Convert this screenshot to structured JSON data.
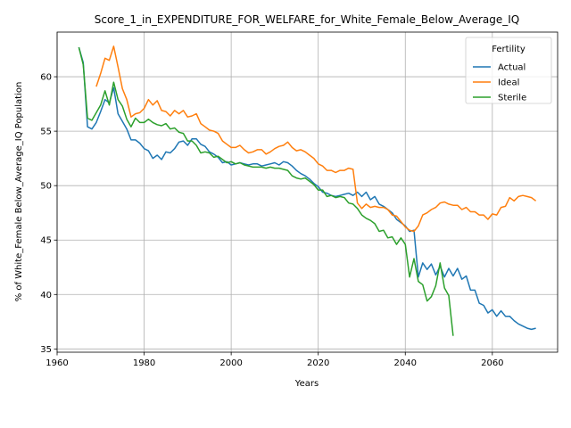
{
  "chart_data": {
    "type": "line",
    "title": "Score_1_in_EXPENDITURE_FOR_WELFARE_for_White_Female_Below_Average_IQ",
    "xlabel": "Years",
    "ylabel": "% of White_Female Below_Average_IQ Population",
    "xlim": [
      1960,
      2075
    ],
    "ylim": [
      34.7,
      64.1
    ],
    "xticks": [
      1960,
      1980,
      2000,
      2020,
      2040,
      2060
    ],
    "yticks": [
      35,
      40,
      45,
      50,
      55,
      60
    ],
    "grid": true,
    "legend": {
      "title": "Fertility",
      "placement": "top-right"
    },
    "series": [
      {
        "name": "Actual",
        "color": "#1f77b4",
        "points": [
          [
            1965,
            62.7
          ],
          [
            1966,
            61.3
          ],
          [
            1967,
            55.4
          ],
          [
            1968,
            55.2
          ],
          [
            1969,
            55.8
          ],
          [
            1970,
            56.8
          ],
          [
            1971,
            57.9
          ],
          [
            1972,
            57.6
          ],
          [
            1973,
            59.0
          ],
          [
            1974,
            56.6
          ],
          [
            1975,
            55.9
          ],
          [
            1976,
            55.2
          ],
          [
            1977,
            54.2
          ],
          [
            1978,
            54.2
          ],
          [
            1979,
            53.9
          ],
          [
            1980,
            53.4
          ],
          [
            1981,
            53.2
          ],
          [
            1982,
            52.5
          ],
          [
            1983,
            52.8
          ],
          [
            1984,
            52.4
          ],
          [
            1985,
            53.1
          ],
          [
            1986,
            53.0
          ],
          [
            1987,
            53.4
          ],
          [
            1988,
            54.0
          ],
          [
            1989,
            54.1
          ],
          [
            1990,
            53.7
          ],
          [
            1991,
            54.3
          ],
          [
            1992,
            54.3
          ],
          [
            1993,
            53.8
          ],
          [
            1994,
            53.6
          ],
          [
            1995,
            53.1
          ],
          [
            1996,
            52.9
          ],
          [
            1997,
            52.6
          ],
          [
            1998,
            52.1
          ],
          [
            1999,
            52.2
          ],
          [
            2000,
            51.9
          ],
          [
            2001,
            52.0
          ],
          [
            2002,
            52.1
          ],
          [
            2003,
            52.0
          ],
          [
            2004,
            51.9
          ],
          [
            2005,
            52.0
          ],
          [
            2006,
            52.0
          ],
          [
            2007,
            51.8
          ],
          [
            2008,
            51.9
          ],
          [
            2009,
            52.0
          ],
          [
            2010,
            52.1
          ],
          [
            2011,
            51.9
          ],
          [
            2012,
            52.2
          ],
          [
            2013,
            52.1
          ],
          [
            2014,
            51.8
          ],
          [
            2015,
            51.4
          ],
          [
            2016,
            51.1
          ],
          [
            2017,
            50.9
          ],
          [
            2018,
            50.6
          ],
          [
            2019,
            50.2
          ],
          [
            2020,
            49.9
          ],
          [
            2021,
            49.4
          ],
          [
            2022,
            49.3
          ],
          [
            2023,
            49.1
          ],
          [
            2024,
            49.0
          ],
          [
            2025,
            49.1
          ],
          [
            2026,
            49.2
          ],
          [
            2027,
            49.3
          ],
          [
            2028,
            49.1
          ],
          [
            2029,
            49.4
          ],
          [
            2030,
            49.0
          ],
          [
            2031,
            49.4
          ],
          [
            2032,
            48.7
          ],
          [
            2033,
            49.0
          ],
          [
            2034,
            48.3
          ],
          [
            2035,
            48.1
          ],
          [
            2036,
            47.8
          ],
          [
            2037,
            47.5
          ],
          [
            2038,
            46.9
          ],
          [
            2039,
            46.6
          ],
          [
            2040,
            46.3
          ],
          [
            2041,
            45.8
          ],
          [
            2042,
            45.9
          ],
          [
            2043,
            41.6
          ],
          [
            2044,
            42.9
          ],
          [
            2045,
            42.3
          ],
          [
            2046,
            42.8
          ],
          [
            2047,
            41.8
          ],
          [
            2048,
            42.6
          ],
          [
            2049,
            41.6
          ],
          [
            2050,
            42.4
          ],
          [
            2051,
            41.7
          ],
          [
            2052,
            42.4
          ],
          [
            2053,
            41.4
          ],
          [
            2054,
            41.7
          ],
          [
            2055,
            40.4
          ],
          [
            2056,
            40.4
          ],
          [
            2057,
            39.2
          ],
          [
            2058,
            39.0
          ],
          [
            2059,
            38.3
          ],
          [
            2060,
            38.6
          ],
          [
            2061,
            38.0
          ],
          [
            2062,
            38.5
          ],
          [
            2063,
            38.0
          ],
          [
            2064,
            38.0
          ],
          [
            2065,
            37.6
          ],
          [
            2066,
            37.3
          ],
          [
            2067,
            37.1
          ],
          [
            2068,
            36.9
          ],
          [
            2069,
            36.8
          ],
          [
            2070,
            36.9
          ]
        ]
      },
      {
        "name": "Ideal",
        "color": "#ff7f0e",
        "points": [
          [
            1969,
            59.1
          ],
          [
            1970,
            60.3
          ],
          [
            1971,
            61.7
          ],
          [
            1972,
            61.5
          ],
          [
            1973,
            62.8
          ],
          [
            1974,
            60.9
          ],
          [
            1975,
            58.9
          ],
          [
            1976,
            57.9
          ],
          [
            1977,
            56.3
          ],
          [
            1978,
            56.6
          ],
          [
            1979,
            56.7
          ],
          [
            1980,
            57.1
          ],
          [
            1981,
            57.9
          ],
          [
            1982,
            57.4
          ],
          [
            1983,
            57.8
          ],
          [
            1984,
            56.9
          ],
          [
            1985,
            56.8
          ],
          [
            1986,
            56.4
          ],
          [
            1987,
            56.9
          ],
          [
            1988,
            56.6
          ],
          [
            1989,
            56.9
          ],
          [
            1990,
            56.3
          ],
          [
            1991,
            56.4
          ],
          [
            1992,
            56.6
          ],
          [
            1993,
            55.7
          ],
          [
            1994,
            55.4
          ],
          [
            1995,
            55.1
          ],
          [
            1996,
            55.0
          ],
          [
            1997,
            54.8
          ],
          [
            1998,
            54.1
          ],
          [
            1999,
            53.8
          ],
          [
            2000,
            53.5
          ],
          [
            2001,
            53.5
          ],
          [
            2002,
            53.7
          ],
          [
            2003,
            53.3
          ],
          [
            2004,
            53.0
          ],
          [
            2005,
            53.1
          ],
          [
            2006,
            53.3
          ],
          [
            2007,
            53.3
          ],
          [
            2008,
            52.9
          ],
          [
            2009,
            53.1
          ],
          [
            2010,
            53.4
          ],
          [
            2011,
            53.6
          ],
          [
            2012,
            53.7
          ],
          [
            2013,
            54.0
          ],
          [
            2014,
            53.5
          ],
          [
            2015,
            53.2
          ],
          [
            2016,
            53.3
          ],
          [
            2017,
            53.1
          ],
          [
            2018,
            52.8
          ],
          [
            2019,
            52.5
          ],
          [
            2020,
            52.0
          ],
          [
            2021,
            51.8
          ],
          [
            2022,
            51.4
          ],
          [
            2023,
            51.4
          ],
          [
            2024,
            51.2
          ],
          [
            2025,
            51.4
          ],
          [
            2026,
            51.4
          ],
          [
            2027,
            51.6
          ],
          [
            2028,
            51.5
          ],
          [
            2029,
            48.4
          ],
          [
            2030,
            47.9
          ],
          [
            2031,
            48.3
          ],
          [
            2032,
            48.0
          ],
          [
            2033,
            48.1
          ],
          [
            2034,
            48.0
          ],
          [
            2035,
            48.0
          ],
          [
            2036,
            47.8
          ],
          [
            2037,
            47.3
          ],
          [
            2038,
            47.2
          ],
          [
            2039,
            46.7
          ],
          [
            2040,
            46.2
          ],
          [
            2041,
            45.9
          ],
          [
            2042,
            45.8
          ],
          [
            2043,
            46.3
          ],
          [
            2044,
            47.3
          ],
          [
            2045,
            47.5
          ],
          [
            2046,
            47.8
          ],
          [
            2047,
            48.0
          ],
          [
            2048,
            48.4
          ],
          [
            2049,
            48.5
          ],
          [
            2050,
            48.3
          ],
          [
            2051,
            48.2
          ],
          [
            2052,
            48.2
          ],
          [
            2053,
            47.8
          ],
          [
            2054,
            48.0
          ],
          [
            2055,
            47.6
          ],
          [
            2056,
            47.6
          ],
          [
            2057,
            47.3
          ],
          [
            2058,
            47.3
          ],
          [
            2059,
            46.9
          ],
          [
            2060,
            47.4
          ],
          [
            2061,
            47.3
          ],
          [
            2062,
            48.0
          ],
          [
            2063,
            48.1
          ],
          [
            2064,
            48.9
          ],
          [
            2065,
            48.6
          ],
          [
            2066,
            49.0
          ],
          [
            2067,
            49.1
          ],
          [
            2068,
            49.0
          ],
          [
            2069,
            48.9
          ],
          [
            2070,
            48.6
          ]
        ]
      },
      {
        "name": "Sterile",
        "color": "#2ca02c",
        "points": [
          [
            1965,
            62.7
          ],
          [
            1966,
            61.1
          ],
          [
            1967,
            56.2
          ],
          [
            1968,
            56.0
          ],
          [
            1969,
            56.7
          ],
          [
            1970,
            57.4
          ],
          [
            1971,
            58.7
          ],
          [
            1972,
            57.4
          ],
          [
            1973,
            59.5
          ],
          [
            1974,
            57.9
          ],
          [
            1975,
            57.3
          ],
          [
            1976,
            56.1
          ],
          [
            1977,
            55.4
          ],
          [
            1978,
            56.2
          ],
          [
            1979,
            55.8
          ],
          [
            1980,
            55.8
          ],
          [
            1981,
            56.1
          ],
          [
            1982,
            55.8
          ],
          [
            1983,
            55.6
          ],
          [
            1984,
            55.5
          ],
          [
            1985,
            55.7
          ],
          [
            1986,
            55.2
          ],
          [
            1987,
            55.3
          ],
          [
            1988,
            54.9
          ],
          [
            1989,
            54.8
          ],
          [
            1990,
            54.1
          ],
          [
            1991,
            54.1
          ],
          [
            1992,
            53.7
          ],
          [
            1993,
            53.0
          ],
          [
            1994,
            53.1
          ],
          [
            1995,
            53.0
          ],
          [
            1996,
            52.6
          ],
          [
            1997,
            52.7
          ],
          [
            1998,
            52.4
          ],
          [
            1999,
            52.1
          ],
          [
            2000,
            52.2
          ],
          [
            2001,
            52.0
          ],
          [
            2002,
            52.1
          ],
          [
            2003,
            51.9
          ],
          [
            2004,
            51.8
          ],
          [
            2005,
            51.7
          ],
          [
            2006,
            51.7
          ],
          [
            2007,
            51.7
          ],
          [
            2008,
            51.6
          ],
          [
            2009,
            51.7
          ],
          [
            2010,
            51.6
          ],
          [
            2011,
            51.6
          ],
          [
            2012,
            51.5
          ],
          [
            2013,
            51.4
          ],
          [
            2014,
            50.9
          ],
          [
            2015,
            50.7
          ],
          [
            2016,
            50.6
          ],
          [
            2017,
            50.7
          ],
          [
            2018,
            50.4
          ],
          [
            2019,
            50.1
          ],
          [
            2020,
            49.6
          ],
          [
            2021,
            49.6
          ],
          [
            2022,
            49.0
          ],
          [
            2023,
            49.1
          ],
          [
            2024,
            48.9
          ],
          [
            2025,
            49.0
          ],
          [
            2026,
            48.9
          ],
          [
            2027,
            48.4
          ],
          [
            2028,
            48.3
          ],
          [
            2029,
            47.9
          ],
          [
            2030,
            47.3
          ],
          [
            2031,
            47.0
          ],
          [
            2032,
            46.8
          ],
          [
            2033,
            46.5
          ],
          [
            2034,
            45.8
          ],
          [
            2035,
            45.9
          ],
          [
            2036,
            45.2
          ],
          [
            2037,
            45.3
          ],
          [
            2038,
            44.6
          ],
          [
            2039,
            45.2
          ],
          [
            2040,
            44.6
          ],
          [
            2041,
            41.6
          ],
          [
            2042,
            43.3
          ],
          [
            2043,
            41.2
          ],
          [
            2044,
            40.9
          ],
          [
            2045,
            39.4
          ],
          [
            2046,
            39.8
          ],
          [
            2047,
            40.8
          ],
          [
            2048,
            42.9
          ],
          [
            2049,
            40.6
          ],
          [
            2050,
            39.9
          ],
          [
            2051,
            36.2
          ]
        ]
      }
    ]
  }
}
